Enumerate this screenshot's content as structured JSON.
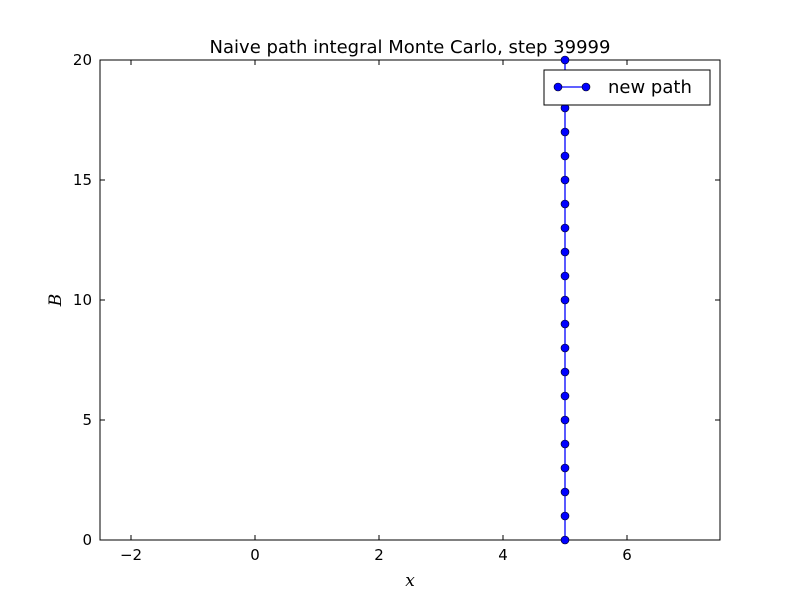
{
  "chart_data": {
    "type": "line",
    "title": "Naive path integral Monte Carlo, step 39999",
    "xlabel": "x",
    "ylabel": "B",
    "xlim": [
      -2.5,
      7.5
    ],
    "ylim": [
      0,
      20
    ],
    "xticks": [
      -2,
      0,
      2,
      4,
      6
    ],
    "xtick_labels": [
      "−2",
      "0",
      "2",
      "4",
      "6"
    ],
    "yticks": [
      0,
      5,
      10,
      15,
      20
    ],
    "ytick_labels": [
      "0",
      "5",
      "10",
      "15",
      "20"
    ],
    "grid": false,
    "legend_position": "top-right",
    "series": [
      {
        "name": "new path",
        "color": "#0000ff",
        "marker": "circle",
        "x": [
          5,
          5,
          5,
          5,
          5,
          5,
          5,
          5,
          5,
          5,
          5,
          5,
          5,
          5,
          5,
          5,
          5,
          5,
          5,
          5,
          5
        ],
        "y": [
          0,
          1,
          2,
          3,
          4,
          5,
          6,
          7,
          8,
          9,
          10,
          11,
          12,
          13,
          14,
          15,
          16,
          17,
          18,
          19,
          20
        ]
      }
    ]
  }
}
